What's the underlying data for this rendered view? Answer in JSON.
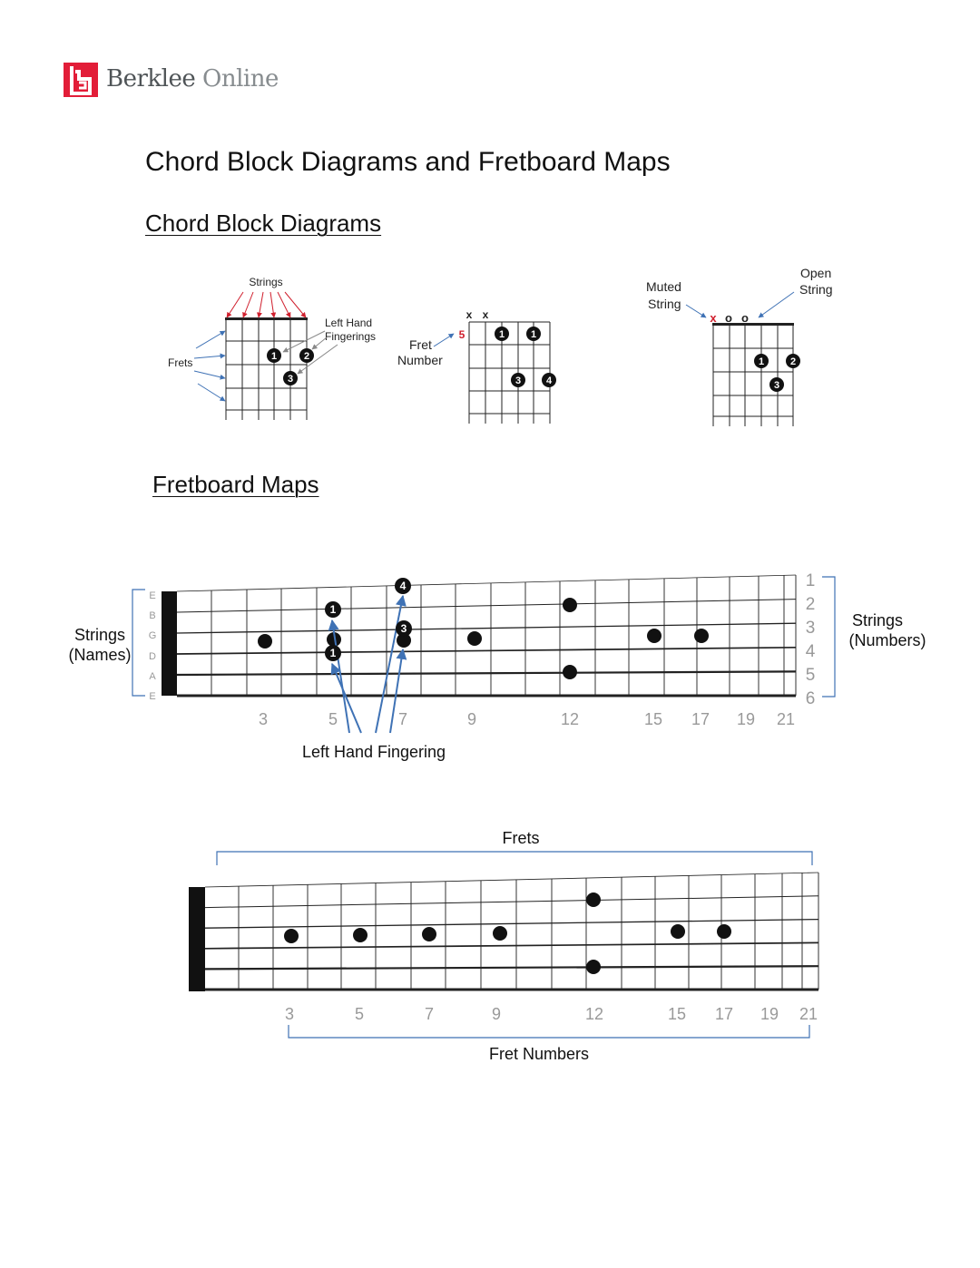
{
  "brand": {
    "name_part1": "Berklee",
    "name_part2": "Online",
    "colors": {
      "red": "#e21d38",
      "dark_gray": "#4f5457",
      "light_gray": "#878c8f"
    }
  },
  "page_title": "Chord Block Diagrams and Fretboard Maps",
  "sections": {
    "chord_block": {
      "heading": "Chord Block Diagrams",
      "diagram1": {
        "strings_label": "Strings",
        "fingerings_label_line1": "Left Hand",
        "fingerings_label_line2": "Fingerings",
        "frets_label": "Frets",
        "fingers": [
          "1",
          "2",
          "3"
        ]
      },
      "diagram2": {
        "muted_marks": [
          "x",
          "x"
        ],
        "fret_number": "5",
        "fret_label_line1": "Fret",
        "fret_label_line2": "Number",
        "fingers": [
          "1",
          "1",
          "3",
          "4"
        ]
      },
      "diagram3": {
        "muted_label_line1": "Muted",
        "muted_label_line2": "String",
        "open_label_line1": "Open",
        "open_label_line2": "String",
        "muted_mark": "x",
        "open_marks": [
          "o",
          "o"
        ],
        "fingers": [
          "1",
          "2",
          "3"
        ]
      }
    },
    "fretboard": {
      "heading": "Fretboard Maps",
      "map1": {
        "string_names": [
          "E",
          "B",
          "G",
          "D",
          "A",
          "E"
        ],
        "string_numbers": [
          "1",
          "2",
          "3",
          "4",
          "5",
          "6"
        ],
        "fret_numbers": [
          "3",
          "5",
          "7",
          "9",
          "12",
          "15",
          "17",
          "19",
          "21"
        ],
        "fingers": [
          "4",
          "1",
          "3",
          "1"
        ],
        "strings_names_label_line1": "Strings",
        "strings_names_label_line2": "(Names)",
        "strings_numbers_label_line1": "Strings",
        "strings_numbers_label_line2": "(Numbers)",
        "fingering_label": "Left Hand Fingering"
      },
      "map2": {
        "frets_label": "Frets",
        "fret_numbers": [
          "3",
          "5",
          "7",
          "9",
          "12",
          "15",
          "17",
          "19",
          "21"
        ],
        "fret_numbers_label": "Fret Numbers"
      }
    }
  }
}
